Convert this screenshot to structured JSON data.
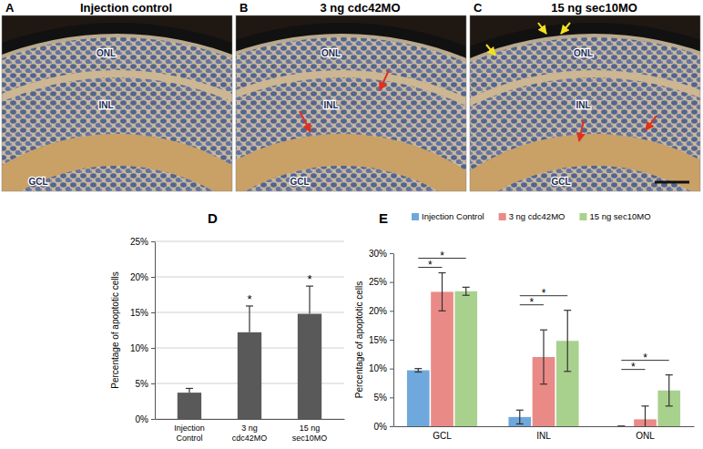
{
  "image_panels": [
    {
      "letter": "A",
      "title": "Injection control",
      "layers": [
        "ONL",
        "INL",
        "GCL"
      ]
    },
    {
      "letter": "B",
      "title": "3 ng cdc42MO",
      "layers": [
        "ONL",
        "INL",
        "GCL"
      ]
    },
    {
      "letter": "C",
      "title": "15 ng sec10MO",
      "layers": [
        "ONL",
        "INL",
        "GCL"
      ]
    }
  ],
  "chart_data": [
    {
      "type": "bar",
      "title": "D",
      "y_label": "Percentage of apoptotic cells",
      "categories": [
        "Injection Control",
        "3 ng cdc42MO",
        "15 ng sec10MO"
      ],
      "values": [
        3.7,
        12.2,
        14.8
      ],
      "errors": [
        0.6,
        3.7,
        3.9
      ],
      "color": "#595959",
      "ylim": [
        0,
        25
      ],
      "yticks": [
        {
          "value": 0,
          "label": "0%"
        },
        {
          "value": 5,
          "label": "5%"
        },
        {
          "value": 10,
          "label": "10%"
        },
        {
          "value": 15,
          "label": "15%"
        },
        {
          "value": 20,
          "label": "20%"
        },
        {
          "value": 25,
          "label": "25%"
        }
      ],
      "grid": true,
      "annotations": [
        "*",
        "*"
      ]
    },
    {
      "type": "bar",
      "title": "E",
      "y_label": "Percentage of apoptotic cells",
      "categories": [
        "GCL",
        "INL",
        "ONL"
      ],
      "series": [
        {
          "name": "Injection Control",
          "color": "#6fa8dc",
          "values": [
            9.7,
            1.6,
            0
          ],
          "errors": [
            0.3,
            1.2,
            0
          ]
        },
        {
          "name": "3 ng cdc42MO",
          "color": "#ea8a87",
          "values": [
            23.3,
            12.0,
            1.2
          ],
          "errors": [
            3.3,
            4.7,
            2.3
          ]
        },
        {
          "name": "15 ng sec10MO",
          "color": "#a9d18e",
          "values": [
            23.4,
            14.8,
            6.2
          ],
          "errors": [
            0.7,
            5.3,
            2.7
          ]
        }
      ],
      "ylim": [
        0,
        30
      ],
      "yticks": [
        {
          "value": 0,
          "label": "0%"
        },
        {
          "value": 5,
          "label": "5%"
        },
        {
          "value": 10,
          "label": "10%"
        },
        {
          "value": 15,
          "label": "15%"
        },
        {
          "value": 20,
          "label": "20%"
        },
        {
          "value": 25,
          "label": "25%"
        },
        {
          "value": 30,
          "label": "30%"
        }
      ],
      "grid": false,
      "legend": "top",
      "annotations": [
        "*",
        "*",
        "*",
        "*",
        "*",
        "*"
      ]
    }
  ]
}
